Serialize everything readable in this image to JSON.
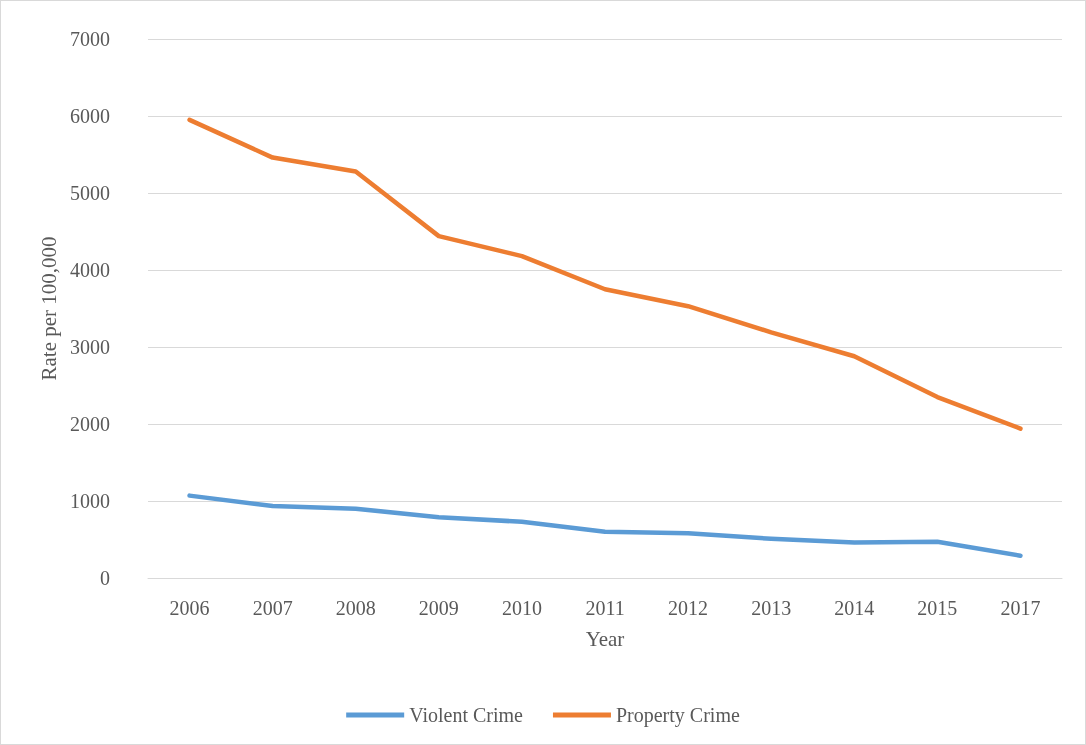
{
  "chart_data": {
    "type": "line",
    "xlabel": "Year",
    "ylabel": "Rate per 100,000",
    "categories": [
      "2006",
      "2007",
      "2008",
      "2009",
      "2010",
      "2011",
      "2012",
      "2013",
      "2014",
      "2015",
      "2017"
    ],
    "series": [
      {
        "name": "Violent Crime",
        "color": "#5b9bd5",
        "values": [
          1070,
          935,
          900,
          790,
          730,
          600,
          580,
          510,
          460,
          470,
          290
        ]
      },
      {
        "name": "Property Crime",
        "color": "#ed7d31",
        "values": [
          5950,
          5460,
          5280,
          4440,
          4180,
          3750,
          3530,
          3190,
          2880,
          2350,
          1940
        ]
      }
    ],
    "ylim": [
      0,
      7000
    ],
    "yticks": [
      0,
      1000,
      2000,
      3000,
      4000,
      5000,
      6000,
      7000
    ],
    "grid": "y",
    "legend": "bottom",
    "marker": "none",
    "line_style": "solid"
  }
}
